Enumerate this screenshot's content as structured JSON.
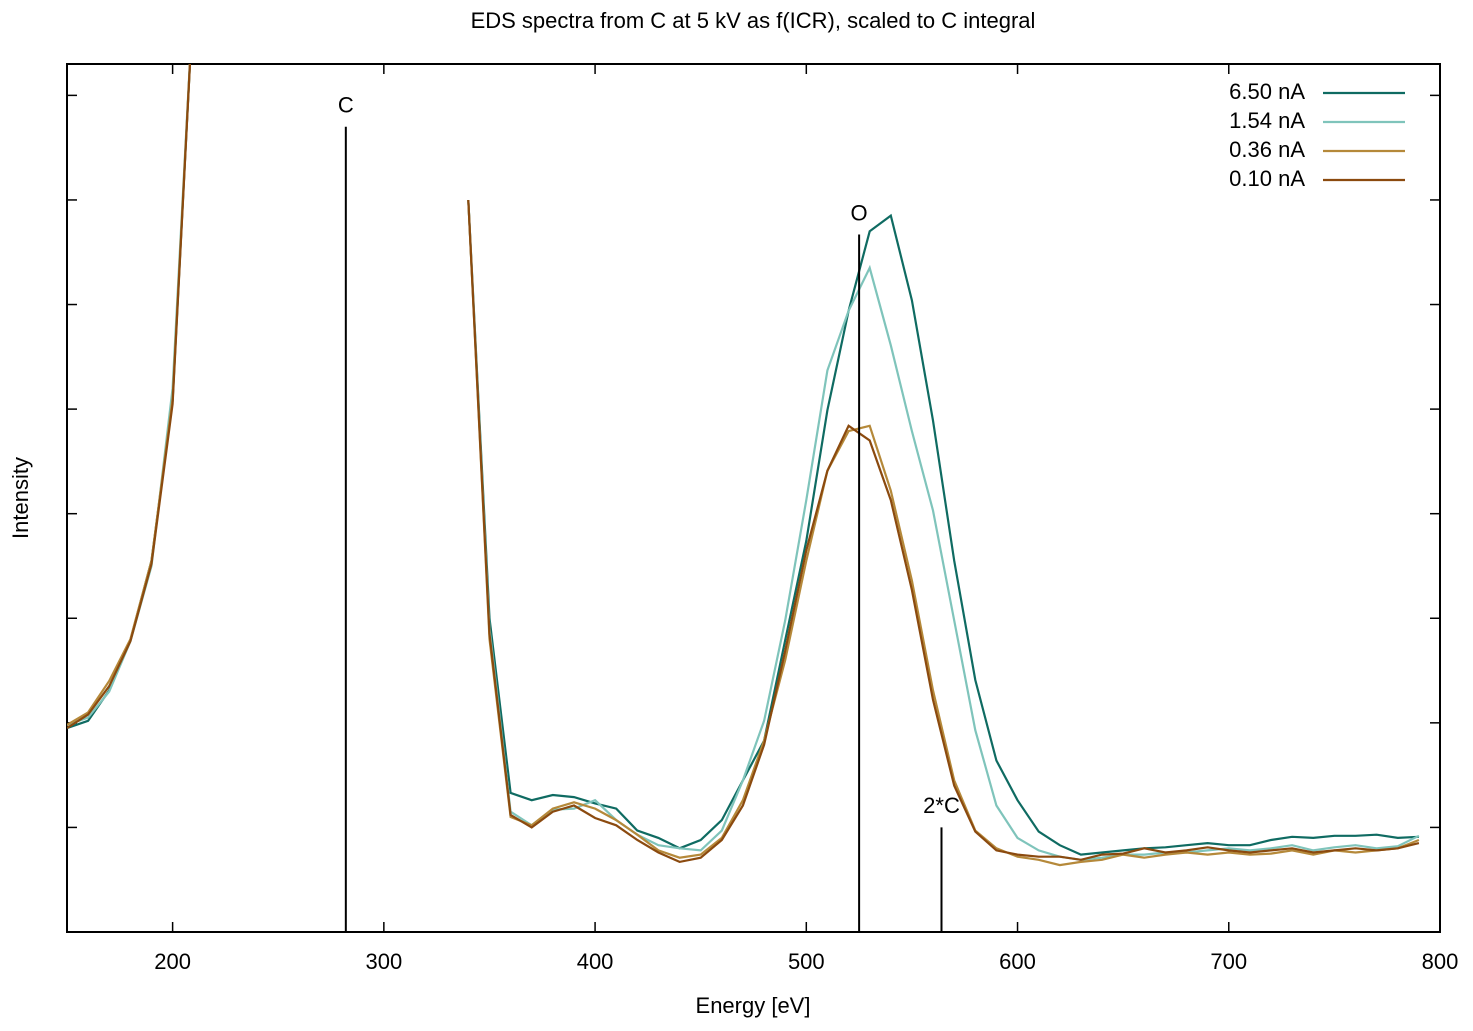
{
  "chart_data": {
    "type": "line",
    "title": "EDS spectra from C at 5 kV as f(ICR), scaled to C integral",
    "xlabel": "Energy [eV]",
    "ylabel": "Intensity",
    "xlim": [
      150,
      800
    ],
    "xticks": [
      200,
      300,
      400,
      500,
      600,
      700,
      800
    ],
    "ylim": [
      0,
      8.3
    ],
    "yticks": [
      1,
      2,
      3,
      4,
      5,
      6,
      7,
      8
    ],
    "legend": "top-right",
    "x": [
      150,
      160,
      170,
      180,
      190,
      200,
      210,
      220,
      230,
      240,
      250,
      260,
      270,
      280,
      290,
      300,
      310,
      320,
      330,
      340,
      350,
      360,
      370,
      380,
      390,
      400,
      410,
      420,
      430,
      440,
      450,
      460,
      470,
      480,
      490,
      500,
      510,
      520,
      530,
      540,
      550,
      560,
      570,
      580,
      590,
      600,
      610,
      620,
      630,
      640,
      650,
      660,
      670,
      680,
      690,
      700,
      710,
      720,
      730,
      740,
      750,
      760,
      770,
      780,
      790
    ],
    "series": [
      {
        "name": "6.50 nA",
        "color": "#0f6b62",
        "values": [
          1.95,
          2.02,
          2.31,
          2.79,
          3.55,
          5.08,
          9.0,
          null,
          null,
          null,
          null,
          null,
          null,
          null,
          null,
          null,
          null,
          null,
          null,
          7.0,
          3.0,
          1.33,
          1.26,
          1.31,
          1.29,
          1.23,
          1.18,
          0.97,
          0.9,
          0.8,
          0.88,
          1.07,
          1.45,
          1.83,
          2.79,
          3.74,
          4.99,
          5.94,
          6.7,
          6.85,
          6.04,
          4.89,
          3.55,
          2.41,
          1.64,
          1.26,
          0.96,
          0.83,
          0.74,
          0.76,
          0.78,
          0.8,
          0.81,
          0.83,
          0.85,
          0.83,
          0.83,
          0.88,
          0.91,
          0.9,
          0.92,
          0.92,
          0.93,
          0.9,
          0.91
        ]
      },
      {
        "name": "1.54 nA",
        "color": "#7fc4bb",
        "values": [
          1.98,
          2.05,
          2.3,
          2.78,
          3.5,
          5.2,
          9.0,
          null,
          null,
          null,
          null,
          null,
          null,
          null,
          null,
          null,
          null,
          null,
          null,
          7.0,
          2.9,
          1.15,
          1.02,
          1.17,
          1.18,
          1.26,
          1.07,
          0.93,
          0.83,
          0.8,
          0.78,
          0.97,
          1.45,
          2.02,
          2.98,
          4.13,
          5.37,
          5.94,
          6.35,
          5.61,
          4.79,
          4.03,
          2.98,
          1.93,
          1.21,
          0.9,
          0.78,
          0.72,
          0.69,
          0.71,
          0.74,
          0.74,
          0.76,
          0.76,
          0.78,
          0.8,
          0.78,
          0.8,
          0.83,
          0.78,
          0.81,
          0.83,
          0.8,
          0.82,
          0.92
        ]
      },
      {
        "name": "0.36 nA",
        "color": "#b5893a",
        "values": [
          1.98,
          2.1,
          2.4,
          2.8,
          3.55,
          5.1,
          9.0,
          null,
          null,
          null,
          null,
          null,
          null,
          null,
          null,
          null,
          null,
          null,
          null,
          7.0,
          2.8,
          1.1,
          1.02,
          1.18,
          1.24,
          1.18,
          1.07,
          0.93,
          0.78,
          0.71,
          0.74,
          0.9,
          1.26,
          1.83,
          2.6,
          3.55,
          4.41,
          4.79,
          4.84,
          4.22,
          3.36,
          2.31,
          1.45,
          0.97,
          0.8,
          0.72,
          0.69,
          0.64,
          0.67,
          0.69,
          0.74,
          0.71,
          0.74,
          0.76,
          0.74,
          0.76,
          0.74,
          0.75,
          0.78,
          0.74,
          0.78,
          0.76,
          0.78,
          0.8,
          0.88
        ]
      },
      {
        "name": "0.10 nA",
        "color": "#8b4a0f",
        "values": [
          1.95,
          2.08,
          2.35,
          2.78,
          3.52,
          5.05,
          9.0,
          null,
          null,
          null,
          null,
          null,
          null,
          null,
          null,
          null,
          null,
          null,
          null,
          7.0,
          2.85,
          1.12,
          1.0,
          1.15,
          1.21,
          1.09,
          1.02,
          0.88,
          0.76,
          0.67,
          0.71,
          0.88,
          1.21,
          1.79,
          2.69,
          3.65,
          4.41,
          4.84,
          4.7,
          4.13,
          3.27,
          2.22,
          1.4,
          0.96,
          0.78,
          0.74,
          0.72,
          0.72,
          0.69,
          0.74,
          0.75,
          0.8,
          0.76,
          0.78,
          0.81,
          0.78,
          0.76,
          0.78,
          0.8,
          0.76,
          0.78,
          0.8,
          0.78,
          0.8,
          0.85
        ]
      }
    ],
    "annotations": [
      {
        "label": "C",
        "x": 282,
        "height": 7.7
      },
      {
        "label": "O",
        "x": 525,
        "height": 6.67
      },
      {
        "label": "2*C",
        "x": 564,
        "height": 1.0
      }
    ]
  }
}
